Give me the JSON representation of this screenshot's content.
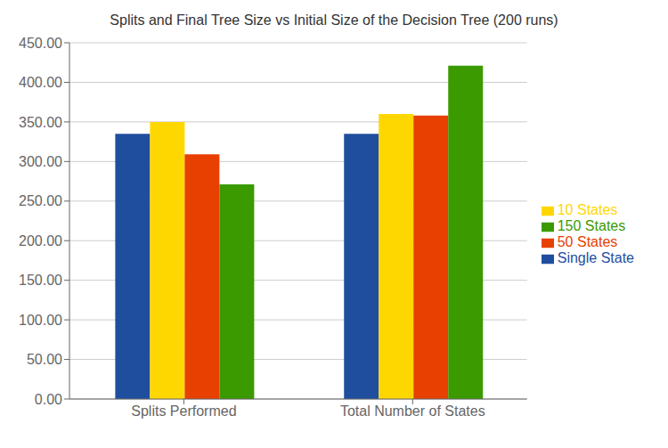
{
  "chart_data": {
    "type": "bar",
    "title": "Splits and Final Tree Size vs Initial Size of the Decision Tree (200 runs)",
    "categories": [
      "Splits Performed",
      "Total Number of States"
    ],
    "series": [
      {
        "name": "Single State",
        "color": "#1f4e9e",
        "values": [
          335,
          335
        ]
      },
      {
        "name": "10 States",
        "color": "#ffd700",
        "values": [
          350,
          360
        ]
      },
      {
        "name": "50 States",
        "color": "#e84000",
        "values": [
          309,
          358
        ]
      },
      {
        "name": "150 States",
        "color": "#3a9a00",
        "values": [
          271,
          421
        ]
      }
    ],
    "ylim": [
      0,
      450
    ],
    "yticks": [
      {
        "value": 0,
        "label": "0.00"
      },
      {
        "value": 50,
        "label": "50.00"
      },
      {
        "value": 100,
        "label": "100.00"
      },
      {
        "value": 150,
        "label": "150.00"
      },
      {
        "value": 200,
        "label": "200.00"
      },
      {
        "value": 250,
        "label": "250.00"
      },
      {
        "value": 300,
        "label": "300.00"
      },
      {
        "value": 350,
        "label": "350.00"
      },
      {
        "value": 400,
        "label": "400.00"
      },
      {
        "value": 450,
        "label": "450.00"
      }
    ],
    "grid": true,
    "legend": "right"
  }
}
